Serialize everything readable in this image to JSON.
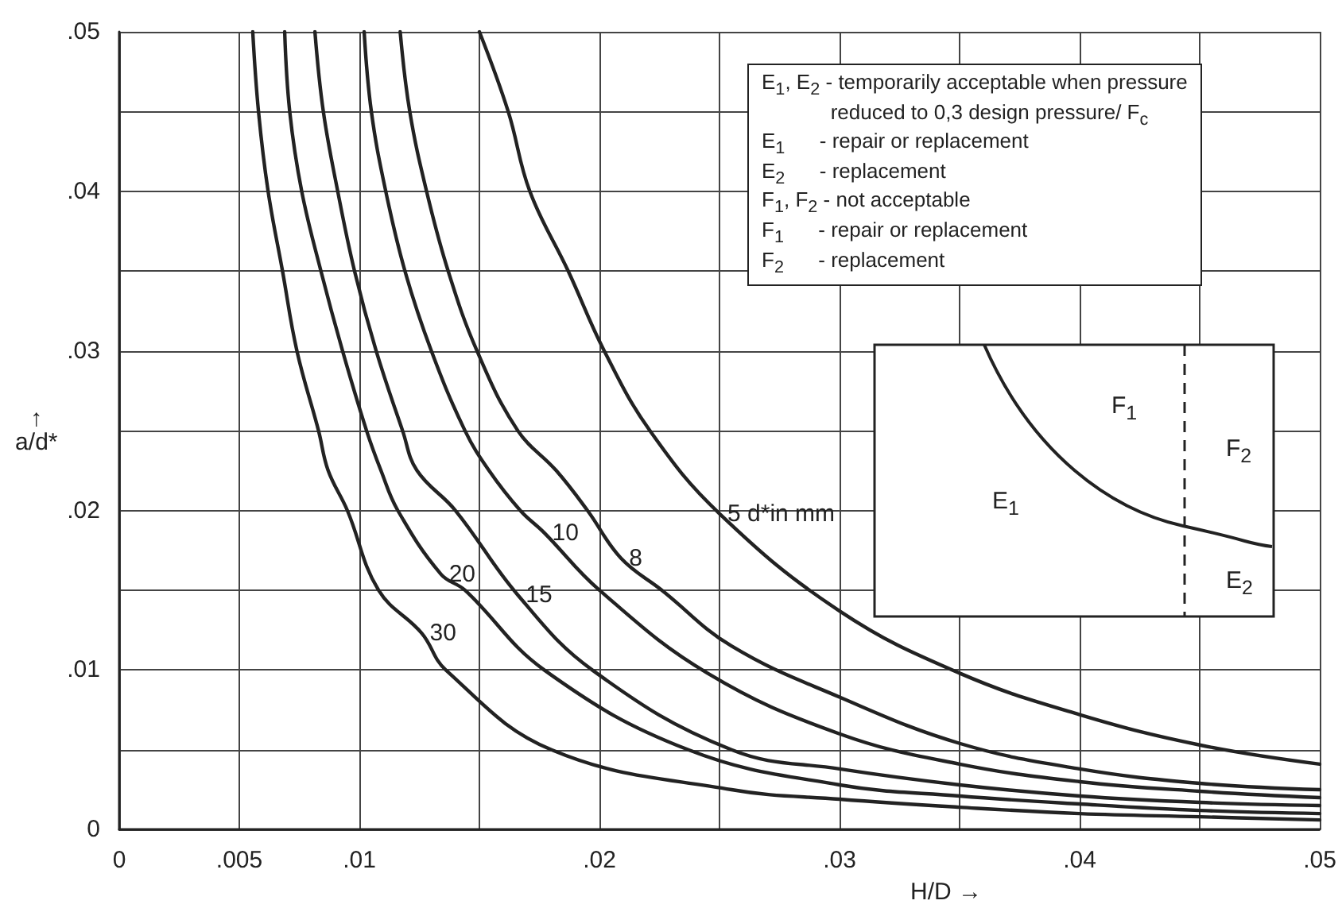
{
  "chart_data": {
    "type": "line",
    "xlabel": "H/D →",
    "ylabel": "↑\na/d*",
    "xlim": [
      0,
      0.05
    ],
    "ylim": [
      0,
      0.05
    ],
    "xticks": [
      {
        "value": 0,
        "label": "0"
      },
      {
        "value": 0.005,
        "label": ".005"
      },
      {
        "value": 0.01,
        "label": ".01"
      },
      {
        "value": 0.015,
        "label": null
      },
      {
        "value": 0.02,
        "label": ".02"
      },
      {
        "value": 0.025,
        "label": null
      },
      {
        "value": 0.03,
        "label": ".03"
      },
      {
        "value": 0.035,
        "label": null
      },
      {
        "value": 0.04,
        "label": ".04"
      },
      {
        "value": 0.045,
        "label": null
      },
      {
        "value": 0.05,
        "label": ".05"
      }
    ],
    "yticks": [
      {
        "value": 0,
        "label": "0"
      },
      {
        "value": 0.005,
        "label": null
      },
      {
        "value": 0.01,
        "label": ".01"
      },
      {
        "value": 0.015,
        "label": null
      },
      {
        "value": 0.02,
        "label": ".02"
      },
      {
        "value": 0.025,
        "label": null
      },
      {
        "value": 0.03,
        "label": ".03"
      },
      {
        "value": 0.035,
        "label": null
      },
      {
        "value": 0.04,
        "label": ".04"
      },
      {
        "value": 0.045,
        "label": null
      },
      {
        "value": 0.05,
        "label": ".05"
      }
    ],
    "grid": true,
    "legend": false,
    "marker": "none",
    "line_style": "solid",
    "series": [
      {
        "name": "5 d*in mm",
        "color": "#222222",
        "x": [
          0.015,
          0.0162,
          0.0171,
          0.0187,
          0.0202,
          0.0221,
          0.025,
          0.03,
          0.035,
          0.04,
          0.045,
          0.05
        ],
        "values": [
          0.05,
          0.045,
          0.04,
          0.035,
          0.03,
          0.025,
          0.0198,
          0.0137,
          0.0098,
          0.0072,
          0.0053,
          0.0041
        ]
      },
      {
        "name": "8",
        "color": "#222222",
        "x": [
          0.0117,
          0.0121,
          0.0128,
          0.0137,
          0.0149,
          0.0166,
          0.0182,
          0.0195,
          0.0209,
          0.0226,
          0.0255,
          0.03,
          0.035,
          0.04,
          0.045,
          0.05
        ],
        "values": [
          0.05,
          0.045,
          0.04,
          0.035,
          0.03,
          0.025,
          0.0225,
          0.02,
          0.017,
          0.015,
          0.0115,
          0.0083,
          0.0054,
          0.0038,
          0.0029,
          0.0025
        ]
      },
      {
        "name": "10",
        "color": "#222222",
        "x": [
          0.0102,
          0.0105,
          0.0111,
          0.0119,
          0.013,
          0.0144,
          0.0154,
          0.0167,
          0.0177,
          0.02,
          0.0245,
          0.03,
          0.035,
          0.04,
          0.045,
          0.05
        ],
        "values": [
          0.05,
          0.045,
          0.04,
          0.035,
          0.03,
          0.025,
          0.0225,
          0.02,
          0.0186,
          0.015,
          0.0098,
          0.006,
          0.0041,
          0.003,
          0.0024,
          0.002
        ]
      },
      {
        "name": "15",
        "color": "#222222",
        "x": [
          0.00815,
          0.0085,
          0.0091,
          0.0098,
          0.0107,
          0.0118,
          0.0124,
          0.014,
          0.0166,
          0.0197,
          0.0255,
          0.03,
          0.035,
          0.04,
          0.045,
          0.05
        ],
        "values": [
          0.05,
          0.045,
          0.04,
          0.035,
          0.03,
          0.025,
          0.0225,
          0.02,
          0.0147,
          0.01,
          0.005,
          0.0038,
          0.0028,
          0.0021,
          0.0017,
          0.0015
        ]
      },
      {
        "name": "20",
        "color": "#222222",
        "x": [
          0.00689,
          0.0071,
          0.0076,
          0.0084,
          0.0093,
          0.0103,
          0.0109,
          0.0116,
          0.0134,
          0.0144,
          0.0177,
          0.0237,
          0.03,
          0.035,
          0.04,
          0.045,
          0.05
        ],
        "values": [
          0.05,
          0.045,
          0.04,
          0.035,
          0.03,
          0.025,
          0.0225,
          0.02,
          0.016,
          0.015,
          0.01,
          0.005,
          0.0028,
          0.0021,
          0.0016,
          0.0012,
          0.001
        ]
      },
      {
        "name": "30",
        "color": "#222222",
        "x": [
          0.00556,
          0.0058,
          0.0062,
          0.0068,
          0.0074,
          0.0083,
          0.0087,
          0.0095,
          0.0108,
          0.0126,
          0.0136,
          0.018,
          0.0255,
          0.03,
          0.035,
          0.04,
          0.045,
          0.05
        ],
        "values": [
          0.05,
          0.045,
          0.04,
          0.035,
          0.03,
          0.025,
          0.0225,
          0.02,
          0.015,
          0.0123,
          0.01,
          0.005,
          0.0025,
          0.0019,
          0.0014,
          0.001,
          0.0008,
          0.0006
        ]
      }
    ],
    "annotations": [
      "E$_{1}$, E$_{2}$ - temporarily acceptable when pressure\n            reduced to 0,3 design pressure/ F$_{c}$",
      "E$_{1}$      - repair or replacement",
      "E$_{2}$      - replacement",
      "F$_{1}$, F$_{2}$ - not acceptable",
      "F$_{1}$      - repair or replacement",
      "F$_{2}$      - replacement",
      "F$_{1}$",
      "F$_{2}$",
      "E$_{1}$",
      "E$_{2}$"
    ]
  }
}
